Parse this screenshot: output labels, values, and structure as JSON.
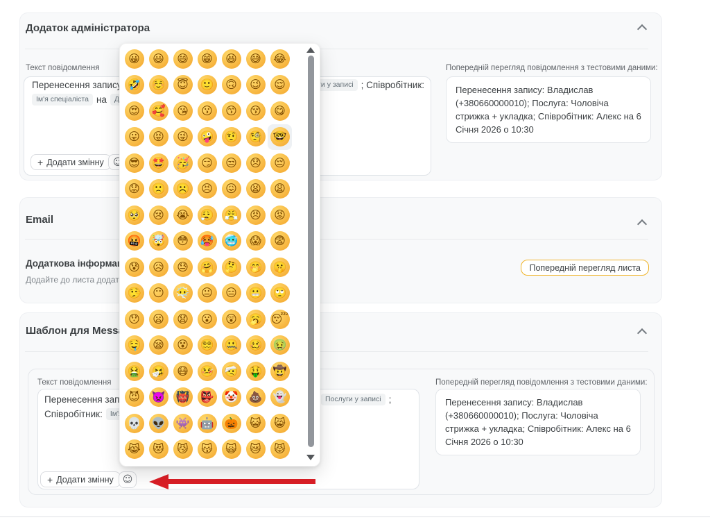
{
  "admin_card": {
    "title": "Додаток адміністратора",
    "editor": {
      "label": "Текст повідомлення",
      "line1_text": "Перенесення запису:",
      "line1_chip": "Послуги у записі",
      "line1_after_chip": "; Співробітник:",
      "line2_chip1": "Ім'я спеціаліста",
      "line2_text": "на",
      "line2_chip2": "Дат",
      "add_variable_button": "Додати змінну",
      "plus_icon": "+",
      "emoji_icon": "☺"
    },
    "preview": {
      "label": "Попередній перегляд повідомлення з тестовими даними:",
      "text": "Перенесення запису: Владислав (+380660000010); Послуга: Чоловіча стрижка + укладка; Співробітник: Алекс на 6 Січня 2026 о 10:30"
    }
  },
  "email_card": {
    "title": "Email",
    "info_title": "Додаткова інформація",
    "info_subtitle": "Додайте до листа додатко",
    "preview_button": "Попередній перегляд листа"
  },
  "messenger_card": {
    "title": "Шаблон для Messag",
    "editor": {
      "label": "Текст повідомлення",
      "line1_text": "Перенесення запис",
      "line1_chip": "Послуги у записі",
      "line1_after_chip": ";",
      "line2_text": "Співробітник:",
      "line2_chip": "Ім'я с",
      "add_variable_button": "Додати змінну",
      "plus_icon": "+",
      "emoji_icon": "☺"
    },
    "preview": {
      "label": "Попередній перегляд повідомлення з тестовими даними:",
      "text": "Перенесення запису: Владислав (+380660000010); Послуга: Чоловіча стрижка + укладка; Співробітник: Алекс на 6 Січня 2026 о 10:30"
    }
  },
  "emoji_picker": {
    "selected_row": 3,
    "selected_col": 6,
    "rows": [
      [
        "😀",
        "😃",
        "😄",
        "😁",
        "😆",
        "😅",
        "😂"
      ],
      [
        "🤣",
        "☺️",
        "😇",
        "🙂",
        "🙃",
        "😉",
        "😌"
      ],
      [
        "😍",
        "🥰",
        "😘",
        "😗",
        "😙",
        "😚",
        "😋"
      ],
      [
        "😛",
        "😝",
        "😜",
        "🤪",
        "🤨",
        "🧐",
        "🤓"
      ],
      [
        "😎",
        "🤩",
        "🥳",
        "😏",
        "😒",
        "😞",
        "😔"
      ],
      [
        "😟",
        "🙁",
        "☹️",
        "😣",
        "😖",
        "😫",
        "😩"
      ],
      [
        "🥺",
        "😢",
        "😭",
        "😮‍💨",
        "😤",
        "😠",
        "😡"
      ],
      [
        "🤬",
        "🤯",
        "😳",
        "🥵",
        "🥶",
        "😱",
        "😨"
      ],
      [
        "😰",
        "😥",
        "😓",
        "🤗",
        "🤔",
        "🤭",
        "🤫"
      ],
      [
        "🤥",
        "😶",
        "😶‍🌫️",
        "😐",
        "😑",
        "😬",
        "🙄"
      ],
      [
        "😯",
        "😦",
        "😧",
        "😮",
        "😲",
        "🥱",
        "😴"
      ],
      [
        "🤤",
        "😪",
        "😵",
        "😵‍💫",
        "🤐",
        "🥴",
        "🤢"
      ],
      [
        "🤮",
        "🤧",
        "😷",
        "🤒",
        "🤕",
        "🤑",
        "🤠"
      ],
      [
        "😈",
        "👿",
        "👹",
        "👺",
        "🤡",
        "💩",
        "👻"
      ],
      [
        "💀",
        "👽",
        "👾",
        "🤖",
        "🎃",
        "😺",
        "😸"
      ],
      [
        "😹",
        "😻",
        "😼",
        "😽",
        "🙀",
        "😿",
        "😾"
      ]
    ]
  },
  "colors": {
    "card_bg": "#f8f9fa",
    "chip_bg": "#f1f3f4",
    "accent_yellow": "#f0b429",
    "arrow_red": "#dc1e26"
  }
}
